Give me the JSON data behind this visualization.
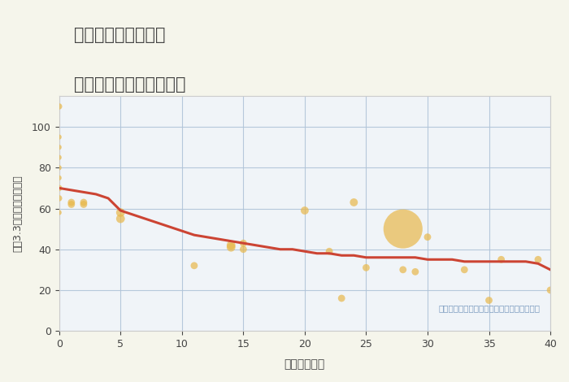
{
  "title_line1": "埼玉県鴻巣市北根の",
  "title_line2": "築年数別中古戸建て価格",
  "xlabel": "築年数（年）",
  "ylabel": "坪（3.3㎡）単価（万円）",
  "background_color": "#f5f5eb",
  "plot_bg_color": "#f0f4f8",
  "bubble_color": "#e8b84b",
  "bubble_alpha": 0.7,
  "line_color": "#cc4433",
  "line_width": 2.2,
  "grid_color": "#b0c4d8",
  "annotation": "円の大きさは、取引のあった物件面積を示す",
  "xlim": [
    0,
    40
  ],
  "ylim": [
    0,
    115
  ],
  "xticks": [
    0,
    5,
    10,
    15,
    20,
    25,
    30,
    35,
    40
  ],
  "yticks": [
    0,
    20,
    40,
    60,
    80,
    100
  ],
  "scatter_x": [
    0,
    0,
    0,
    0,
    0,
    0,
    0,
    0,
    0,
    1,
    1,
    2,
    2,
    5,
    5,
    11,
    14,
    14,
    15,
    15,
    20,
    22,
    23,
    24,
    25,
    28,
    28,
    29,
    30,
    33,
    35,
    36,
    39,
    40
  ],
  "scatter_y": [
    110,
    95,
    90,
    85,
    80,
    75,
    70,
    65,
    58,
    63,
    62,
    63,
    62,
    58,
    55,
    32,
    42,
    41,
    43,
    40,
    59,
    39,
    16,
    63,
    31,
    50,
    30,
    29,
    46,
    30,
    15,
    35,
    35,
    20
  ],
  "scatter_size": [
    30,
    20,
    20,
    20,
    20,
    20,
    30,
    30,
    20,
    40,
    40,
    40,
    40,
    60,
    60,
    40,
    60,
    60,
    40,
    40,
    50,
    40,
    40,
    50,
    40,
    1200,
    40,
    40,
    40,
    40,
    40,
    40,
    40,
    40
  ],
  "trend_x": [
    0,
    1,
    2,
    3,
    4,
    5,
    6,
    7,
    8,
    9,
    10,
    11,
    12,
    13,
    14,
    15,
    16,
    17,
    18,
    19,
    20,
    21,
    22,
    23,
    24,
    25,
    26,
    27,
    28,
    29,
    30,
    31,
    32,
    33,
    34,
    35,
    36,
    37,
    38,
    39,
    40
  ],
  "trend_y": [
    70,
    69,
    68,
    67,
    65,
    59,
    57,
    55,
    53,
    51,
    49,
    47,
    46,
    45,
    44,
    43,
    42,
    41,
    40,
    40,
    39,
    38,
    38,
    37,
    37,
    36,
    36,
    36,
    36,
    36,
    35,
    35,
    35,
    34,
    34,
    34,
    34,
    34,
    34,
    33,
    30
  ]
}
